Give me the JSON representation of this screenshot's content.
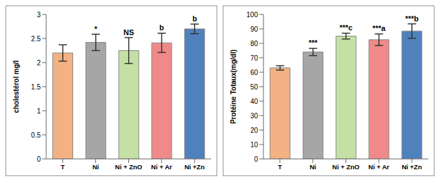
{
  "chart_data": [
    {
      "type": "bar",
      "y_label": "cholestérol mg/l",
      "categories": [
        "T",
        "Ni",
        "Ni + ZnO",
        "Ni + Ar",
        "Ni +Zn"
      ],
      "values": [
        2.2,
        2.42,
        2.25,
        2.41,
        2.7
      ],
      "errors": [
        0.17,
        0.17,
        0.27,
        0.2,
        0.1
      ],
      "annotations": [
        null,
        "*",
        "NS",
        "b",
        "b"
      ],
      "colors": [
        "#f4b183",
        "#a6a6a6",
        "#c5e0a5",
        "#f08a8a",
        "#4f81bd"
      ],
      "ylim": [
        0,
        3
      ],
      "yticks": [
        0,
        0.5,
        1,
        1.5,
        2,
        2.5,
        3
      ],
      "grid": false
    },
    {
      "type": "bar",
      "y_label": "Protéine Totaux(mg/dl)",
      "categories": [
        "T",
        "Ni",
        "Ni + ZnO",
        "Ni + Ar",
        "Ni +Zn"
      ],
      "values": [
        63,
        74,
        85,
        82.5,
        88.5
      ],
      "errors": [
        1.5,
        2.5,
        2,
        4,
        5
      ],
      "annotations": [
        null,
        "***",
        "***c",
        "***a",
        "***b"
      ],
      "colors": [
        "#f4b183",
        "#a6a6a6",
        "#c5e0a5",
        "#f08a8a",
        "#4f81bd"
      ],
      "ylim": [
        0,
        100
      ],
      "yticks": [
        0,
        10,
        20,
        30,
        40,
        50,
        60,
        70,
        80,
        90,
        100
      ],
      "grid": false
    }
  ]
}
